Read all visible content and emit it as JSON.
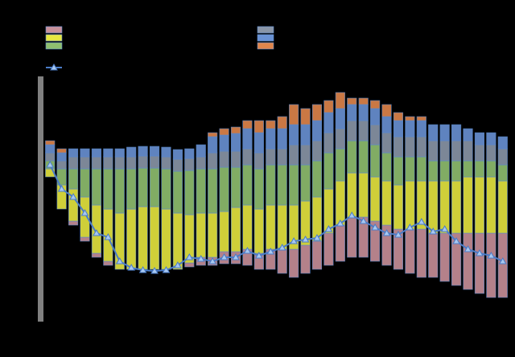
{
  "chart_data": {
    "type": "stacked_bar_line",
    "categories": [
      null,
      null,
      null,
      null,
      null,
      null,
      null,
      null,
      null,
      null,
      null,
      null,
      null,
      null,
      null,
      null,
      null,
      null,
      null,
      null,
      null,
      null,
      null,
      null,
      null,
      null,
      null,
      null,
      null,
      null,
      null,
      null,
      null,
      null,
      null,
      null,
      null,
      null,
      null,
      null
    ],
    "ylim": [
      0,
      305
    ],
    "series": [
      {
        "color": "#000000",
        "values": [
          180,
          140,
          120,
          100,
          80,
          70,
          65,
          65,
          65,
          65,
          65,
          65,
          68,
          70,
          70,
          72,
          72,
          70,
          65,
          65,
          60,
          55,
          60,
          65,
          70,
          75,
          80,
          80,
          75,
          70,
          65,
          60,
          55,
          55,
          50,
          45,
          40,
          35,
          30,
          30
        ]
      },
      {
        "color": "#c8909a",
        "values": [
          0,
          0,
          5,
          5,
          5,
          5,
          0,
          0,
          0,
          0,
          0,
          0,
          5,
          10,
          10,
          15,
          15,
          20,
          20,
          25,
          30,
          35,
          35,
          35,
          40,
          45,
          50,
          50,
          50,
          50,
          50,
          55,
          60,
          55,
          60,
          65,
          70,
          75,
          80,
          80
        ]
      },
      {
        "color": "#e6e640",
        "values": [
          10,
          30,
          40,
          50,
          60,
          65,
          70,
          75,
          78,
          78,
          75,
          70,
          60,
          55,
          55,
          50,
          55,
          55,
          55,
          55,
          55,
          55,
          55,
          55,
          55,
          55,
          55,
          55,
          55,
          55,
          55,
          60,
          60,
          65,
          65,
          65,
          70,
          70,
          70,
          65
        ]
      },
      {
        "color": "#8fbf6f",
        "values": [
          10,
          20,
          25,
          35,
          45,
          50,
          55,
          50,
          48,
          48,
          50,
          52,
          55,
          55,
          55,
          55,
          50,
          50,
          50,
          50,
          50,
          50,
          45,
          45,
          45,
          40,
          40,
          40,
          40,
          35,
          35,
          30,
          30,
          25,
          25,
          25,
          20,
          20,
          20,
          20
        ]
      },
      {
        "color": "#8a96a8",
        "values": [
          10,
          10,
          15,
          15,
          15,
          15,
          15,
          15,
          15,
          15,
          15,
          15,
          15,
          15,
          20,
          20,
          20,
          20,
          20,
          20,
          20,
          25,
          25,
          25,
          25,
          25,
          25,
          25,
          25,
          25,
          25,
          25,
          25,
          25,
          25,
          25,
          25,
          20,
          20,
          20
        ]
      },
      {
        "color": "#6a92d4",
        "values": [
          10,
          10,
          10,
          10,
          10,
          10,
          10,
          12,
          12,
          12,
          12,
          12,
          12,
          15,
          20,
          20,
          22,
          25,
          25,
          25,
          25,
          25,
          25,
          25,
          25,
          25,
          20,
          20,
          20,
          20,
          20,
          20,
          20,
          20,
          20,
          20,
          15,
          15,
          15,
          15
        ]
      },
      {
        "color": "#e0864c",
        "values": [
          5,
          5,
          0,
          0,
          0,
          0,
          0,
          0,
          0,
          0,
          0,
          0,
          0,
          0,
          5,
          8,
          8,
          10,
          15,
          10,
          15,
          25,
          20,
          20,
          15,
          20,
          8,
          8,
          10,
          15,
          10,
          5,
          5,
          0,
          0,
          0,
          0,
          0,
          0,
          0
        ]
      }
    ],
    "line": {
      "color": "#4a7cc8",
      "marker_color": "#a8c8f0",
      "values": [
        195,
        165,
        155,
        135,
        110,
        105,
        75,
        67,
        64,
        63,
        64,
        70,
        80,
        78,
        75,
        80,
        80,
        88,
        82,
        87,
        92,
        100,
        102,
        104,
        115,
        122,
        132,
        125,
        117,
        110,
        108,
        117,
        124,
        112,
        115,
        100,
        90,
        85,
        82,
        75
      ]
    }
  }
}
